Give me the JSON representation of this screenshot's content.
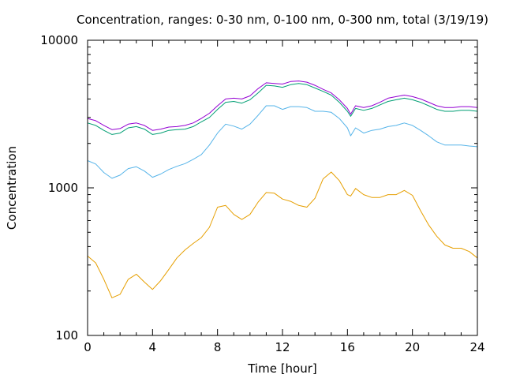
{
  "chart_data": {
    "type": "line",
    "title": "Concentration, ranges: 0-30 nm, 0-100 nm, 0-300 nm, total (3/19/19)",
    "xlabel": "Time [hour]",
    "ylabel": "Concentration",
    "xlim": [
      0,
      24
    ],
    "ylim": [
      100,
      10000
    ],
    "yscale": "log",
    "grid": false,
    "legend": "none",
    "xticks": [
      0,
      4,
      8,
      12,
      16,
      20,
      24
    ],
    "xtick_labels": [
      "0",
      "4",
      "8",
      "12",
      "16",
      "20",
      "24"
    ],
    "yticks": [
      100,
      1000,
      10000
    ],
    "ytick_labels": [
      "100",
      "1000",
      "10000"
    ],
    "series": [
      {
        "color": "#e69f00",
        "x": [
          0,
          0.5,
          1.0,
          1.5,
          2.0,
          2.5,
          3.0,
          3.5,
          4.0,
          4.5,
          5.0,
          5.5,
          6.0,
          6.5,
          7.0,
          7.5,
          8.0,
          8.5,
          9.0,
          9.5,
          10.0,
          10.5,
          11.0,
          11.5,
          12.0,
          12.5,
          13.0,
          13.5,
          14.0,
          14.5,
          15.0,
          15.5,
          16.0,
          16.2,
          16.5,
          17.0,
          17.5,
          18.0,
          18.5,
          19.0,
          19.5,
          20.0,
          20.5,
          21.0,
          21.5,
          22.0,
          22.5,
          23.0,
          23.5,
          24.0
        ],
        "values": [
          345,
          310,
          240,
          180,
          190,
          240,
          260,
          230,
          205,
          235,
          280,
          335,
          380,
          420,
          460,
          540,
          740,
          760,
          660,
          610,
          660,
          800,
          930,
          920,
          840,
          810,
          760,
          740,
          850,
          1150,
          1280,
          1120,
          900,
          880,
          990,
          900,
          860,
          860,
          900,
          900,
          960,
          890,
          700,
          560,
          470,
          410,
          390,
          390,
          370,
          335
        ]
      },
      {
        "color": "#56b4e9",
        "x": [
          0,
          0.5,
          1.0,
          1.5,
          2.0,
          2.5,
          3.0,
          3.5,
          4.0,
          4.5,
          5.0,
          5.5,
          6.0,
          6.5,
          7.0,
          7.5,
          8.0,
          8.5,
          9.0,
          9.5,
          10.0,
          10.5,
          11.0,
          11.5,
          12.0,
          12.5,
          13.0,
          13.5,
          14.0,
          14.5,
          15.0,
          15.5,
          16.0,
          16.2,
          16.5,
          17.0,
          17.5,
          18.0,
          18.5,
          19.0,
          19.5,
          20.0,
          20.5,
          21.0,
          21.5,
          22.0,
          22.5,
          23.0,
          23.5,
          24.0
        ],
        "values": [
          1530,
          1450,
          1270,
          1160,
          1220,
          1350,
          1390,
          1300,
          1180,
          1240,
          1330,
          1400,
          1460,
          1560,
          1680,
          1950,
          2350,
          2700,
          2620,
          2500,
          2700,
          3100,
          3600,
          3600,
          3400,
          3550,
          3550,
          3500,
          3300,
          3300,
          3250,
          2950,
          2550,
          2250,
          2550,
          2350,
          2450,
          2500,
          2600,
          2650,
          2750,
          2650,
          2450,
          2250,
          2050,
          1950,
          1950,
          1950,
          1920,
          1900
        ]
      },
      {
        "color": "#009e73",
        "x": [
          0,
          0.5,
          1.0,
          1.5,
          2.0,
          2.5,
          3.0,
          3.5,
          4.0,
          4.5,
          5.0,
          5.5,
          6.0,
          6.5,
          7.0,
          7.5,
          8.0,
          8.5,
          9.0,
          9.5,
          10.0,
          10.5,
          11.0,
          11.5,
          12.0,
          12.5,
          13.0,
          13.5,
          14.0,
          14.5,
          15.0,
          15.5,
          16.0,
          16.2,
          16.5,
          17.0,
          17.5,
          18.0,
          18.5,
          19.0,
          19.5,
          20.0,
          20.5,
          21.0,
          21.5,
          22.0,
          22.5,
          23.0,
          23.5,
          24.0
        ],
        "values": [
          2750,
          2650,
          2450,
          2300,
          2350,
          2550,
          2600,
          2500,
          2300,
          2350,
          2450,
          2480,
          2500,
          2600,
          2800,
          3000,
          3400,
          3800,
          3850,
          3750,
          3950,
          4400,
          4950,
          4900,
          4800,
          5000,
          5100,
          5000,
          4750,
          4500,
          4250,
          3800,
          3300,
          3050,
          3450,
          3350,
          3450,
          3650,
          3850,
          3950,
          4050,
          3950,
          3800,
          3600,
          3400,
          3300,
          3300,
          3350,
          3350,
          3300
        ]
      },
      {
        "color": "#9400d3",
        "x": [
          0,
          0.5,
          1.0,
          1.5,
          2.0,
          2.5,
          3.0,
          3.5,
          4.0,
          4.5,
          5.0,
          5.5,
          6.0,
          6.5,
          7.0,
          7.5,
          8.0,
          8.5,
          9.0,
          9.5,
          10.0,
          10.5,
          11.0,
          11.5,
          12.0,
          12.5,
          13.0,
          13.5,
          14.0,
          14.5,
          15.0,
          15.5,
          16.0,
          16.2,
          16.5,
          17.0,
          17.5,
          18.0,
          18.5,
          19.0,
          19.5,
          20.0,
          20.5,
          21.0,
          21.5,
          22.0,
          22.5,
          23.0,
          23.5,
          24.0
        ],
        "values": [
          2950,
          2850,
          2650,
          2480,
          2520,
          2700,
          2750,
          2650,
          2450,
          2500,
          2580,
          2600,
          2650,
          2750,
          2950,
          3200,
          3600,
          4000,
          4050,
          4000,
          4200,
          4700,
          5150,
          5100,
          5050,
          5250,
          5300,
          5200,
          4950,
          4650,
          4400,
          3950,
          3450,
          3150,
          3600,
          3500,
          3600,
          3800,
          4050,
          4150,
          4250,
          4150,
          4000,
          3800,
          3600,
          3500,
          3500,
          3550,
          3550,
          3500
        ]
      }
    ]
  }
}
